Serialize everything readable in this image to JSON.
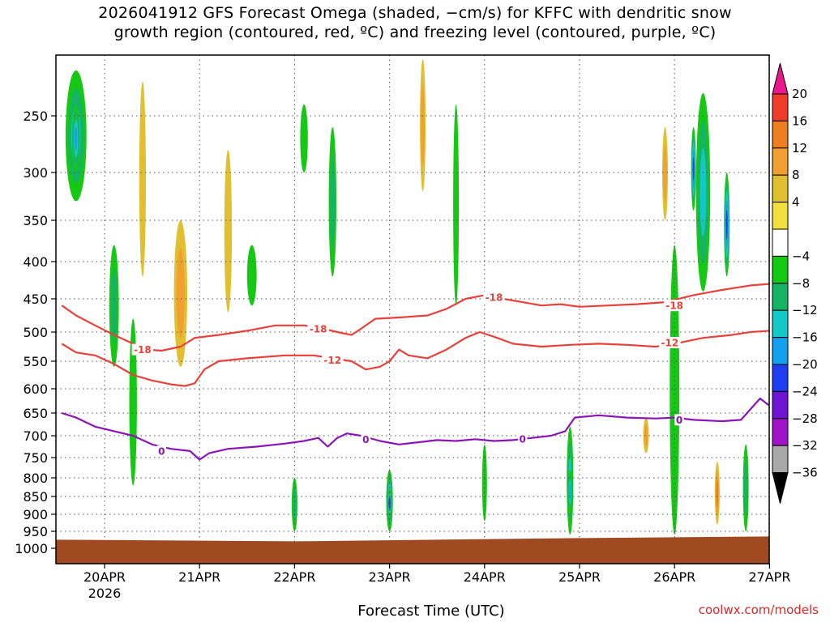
{
  "title_line1": "2026041912 GFS Forecast Omega (shaded, −cm/s) for KFFC with dendritic snow",
  "title_line2": "growth region (contoured, red, ºC) and freezing level (contoured, purple, ºC)",
  "credit": "coolwx.com/models",
  "colors": {
    "ground": "#a04a22",
    "dgz_contour": "#e8403a",
    "freezing_contour": "#8c14b4",
    "grid": "#555555"
  },
  "chart_data": {
    "type": "heatmap",
    "title": "2026041912 GFS Forecast Omega (shaded, −cm/s) for KFFC with dendritic snow growth region (contoured, red, ºC) and freezing level (contoured, purple, ºC)",
    "xlabel": "Forecast Time (UTC)",
    "ylabel": "",
    "x_ticks": [
      "20APR",
      "21APR",
      "22APR",
      "23APR",
      "24APR",
      "25APR",
      "26APR",
      "27APR"
    ],
    "x_sublabel": "2026",
    "x_range_days": [
      0.0,
      7.0
    ],
    "x_start_offset_days": -0.45,
    "y_ticks": [
      250,
      300,
      350,
      400,
      450,
      500,
      550,
      600,
      650,
      700,
      750,
      800,
      850,
      900,
      950,
      1000
    ],
    "y_range_hpa": [
      200,
      1020
    ],
    "colorbar": {
      "tick_labels": [
        "20",
        "16",
        "12",
        "8",
        "4",
        "−4",
        "−8",
        "−12",
        "−16",
        "−20",
        "−24",
        "−28",
        "−32",
        "−36"
      ],
      "bins": [
        {
          "range": ">20",
          "color": "#e8178c"
        },
        {
          "range": "16 to 20",
          "color": "#f03a2a"
        },
        {
          "range": "12 to 16",
          "color": "#ee7e20"
        },
        {
          "range": "8 to 12",
          "color": "#f0a030"
        },
        {
          "range": "4 to 8",
          "color": "#e0c030"
        },
        {
          "range": "-4 to 4",
          "color": "#f0e040"
        },
        {
          "range": "-4 to 4 (blank)",
          "color": "#ffffff"
        },
        {
          "range": "-8 to -4",
          "color": "#14c814"
        },
        {
          "range": "-12 to -8",
          "color": "#14b464"
        },
        {
          "range": "-16 to -12",
          "color": "#14c8c8"
        },
        {
          "range": "-20 to -16",
          "color": "#14a0f0"
        },
        {
          "range": "-24 to -20",
          "color": "#1e3cf0"
        },
        {
          "range": "-28 to -24",
          "color": "#6e14d2"
        },
        {
          "range": "-32 to -28",
          "color": "#a014c8"
        },
        {
          "range": "-36 to -32",
          "color": "#a8a8a8"
        },
        {
          "range": "<-36",
          "color": "#000000"
        }
      ]
    },
    "contours": {
      "dgz_minus18": {
        "label": "-18",
        "points_day_hpa": [
          [
            -0.45,
            460
          ],
          [
            -0.3,
            475
          ],
          [
            -0.1,
            490
          ],
          [
            0.1,
            505
          ],
          [
            0.3,
            520
          ],
          [
            0.45,
            530
          ],
          [
            0.6,
            532
          ],
          [
            0.8,
            525
          ],
          [
            0.95,
            510
          ],
          [
            1.2,
            505
          ],
          [
            1.5,
            498
          ],
          [
            1.8,
            490
          ],
          [
            2.1,
            490
          ],
          [
            2.3,
            495
          ],
          [
            2.45,
            500
          ],
          [
            2.6,
            505
          ],
          [
            2.7,
            495
          ],
          [
            2.85,
            480
          ],
          [
            3.1,
            478
          ],
          [
            3.4,
            475
          ],
          [
            3.6,
            465
          ],
          [
            3.8,
            450
          ],
          [
            4.0,
            445
          ],
          [
            4.2,
            450
          ],
          [
            4.4,
            455
          ],
          [
            4.6,
            460
          ],
          [
            4.8,
            458
          ],
          [
            5.0,
            462
          ],
          [
            5.3,
            460
          ],
          [
            5.6,
            458
          ],
          [
            5.9,
            455
          ],
          [
            6.2,
            445
          ],
          [
            6.5,
            438
          ],
          [
            6.8,
            432
          ],
          [
            7.0,
            430
          ]
        ]
      },
      "dgz_minus12": {
        "label": "-12",
        "points_day_hpa": [
          [
            -0.45,
            520
          ],
          [
            -0.3,
            535
          ],
          [
            -0.1,
            540
          ],
          [
            0.1,
            555
          ],
          [
            0.3,
            575
          ],
          [
            0.5,
            585
          ],
          [
            0.7,
            592
          ],
          [
            0.85,
            595
          ],
          [
            0.95,
            590
          ],
          [
            1.05,
            565
          ],
          [
            1.2,
            550
          ],
          [
            1.5,
            545
          ],
          [
            1.9,
            540
          ],
          [
            2.2,
            540
          ],
          [
            2.4,
            545
          ],
          [
            2.6,
            550
          ],
          [
            2.75,
            565
          ],
          [
            2.9,
            560
          ],
          [
            3.0,
            550
          ],
          [
            3.1,
            530
          ],
          [
            3.2,
            540
          ],
          [
            3.4,
            545
          ],
          [
            3.6,
            530
          ],
          [
            3.8,
            510
          ],
          [
            3.95,
            500
          ],
          [
            4.1,
            508
          ],
          [
            4.3,
            520
          ],
          [
            4.6,
            525
          ],
          [
            4.9,
            522
          ],
          [
            5.2,
            520
          ],
          [
            5.5,
            522
          ],
          [
            5.8,
            525
          ],
          [
            6.0,
            520
          ],
          [
            6.3,
            510
          ],
          [
            6.6,
            505
          ],
          [
            6.8,
            500
          ],
          [
            7.0,
            498
          ]
        ]
      },
      "freezing_level": {
        "label": "0",
        "points_day_hpa": [
          [
            -0.45,
            650
          ],
          [
            -0.3,
            660
          ],
          [
            -0.1,
            680
          ],
          [
            0.1,
            690
          ],
          [
            0.3,
            700
          ],
          [
            0.5,
            720
          ],
          [
            0.7,
            730
          ],
          [
            0.9,
            735
          ],
          [
            1.0,
            755
          ],
          [
            1.1,
            740
          ],
          [
            1.3,
            730
          ],
          [
            1.6,
            725
          ],
          [
            1.9,
            718
          ],
          [
            2.1,
            712
          ],
          [
            2.25,
            705
          ],
          [
            2.35,
            725
          ],
          [
            2.45,
            705
          ],
          [
            2.55,
            695
          ],
          [
            2.7,
            700
          ],
          [
            2.9,
            712
          ],
          [
            3.1,
            720
          ],
          [
            3.3,
            715
          ],
          [
            3.5,
            710
          ],
          [
            3.7,
            712
          ],
          [
            3.9,
            708
          ],
          [
            4.1,
            712
          ],
          [
            4.3,
            710
          ],
          [
            4.5,
            705
          ],
          [
            4.7,
            700
          ],
          [
            4.85,
            690
          ],
          [
            4.95,
            660
          ],
          [
            5.2,
            655
          ],
          [
            5.5,
            660
          ],
          [
            5.8,
            662
          ],
          [
            6.0,
            660
          ],
          [
            6.2,
            665
          ],
          [
            6.5,
            668
          ],
          [
            6.7,
            665
          ],
          [
            6.9,
            620
          ],
          [
            7.0,
            635
          ]
        ]
      }
    },
    "contour_labels": [
      {
        "text": "-18",
        "day": 0.4,
        "hpa": 530,
        "color": "dgz_contour"
      },
      {
        "text": "-18",
        "day": 2.25,
        "hpa": 495,
        "color": "dgz_contour"
      },
      {
        "text": "-18",
        "day": 4.1,
        "hpa": 448,
        "color": "dgz_contour"
      },
      {
        "text": "-18",
        "day": 6.0,
        "hpa": 460,
        "color": "dgz_contour"
      },
      {
        "text": "-12",
        "day": 2.4,
        "hpa": 548,
        "color": "dgz_contour"
      },
      {
        "text": "-12",
        "day": 5.95,
        "hpa": 518,
        "color": "dgz_contour"
      },
      {
        "text": "0",
        "day": 0.6,
        "hpa": 735,
        "color": "freezing_contour"
      },
      {
        "text": "0",
        "day": 2.75,
        "hpa": 708,
        "color": "freezing_contour"
      },
      {
        "text": "0",
        "day": 4.4,
        "hpa": 707,
        "color": "freezing_contour"
      },
      {
        "text": "0",
        "day": 6.05,
        "hpa": 665,
        "color": "freezing_contour"
      }
    ],
    "omega_features": [
      {
        "day": -0.3,
        "p0": 210,
        "p1": 330,
        "w": 0.22,
        "val": -16
      },
      {
        "day": -0.3,
        "p0": 240,
        "p1": 300,
        "w": 0.08,
        "val": -20
      },
      {
        "day": 0.1,
        "p0": 380,
        "p1": 560,
        "w": 0.1,
        "val": -12
      },
      {
        "day": 0.3,
        "p0": 480,
        "p1": 820,
        "w": 0.08,
        "val": -8
      },
      {
        "day": 0.4,
        "p0": 220,
        "p1": 420,
        "w": 0.07,
        "val": 6
      },
      {
        "day": 0.8,
        "p0": 350,
        "p1": 560,
        "w": 0.14,
        "val": 10
      },
      {
        "day": 1.3,
        "p0": 280,
        "p1": 470,
        "w": 0.08,
        "val": 6
      },
      {
        "day": 1.55,
        "p0": 380,
        "p1": 460,
        "w": 0.1,
        "val": -6
      },
      {
        "day": 2.1,
        "p0": 240,
        "p1": 300,
        "w": 0.08,
        "val": -6
      },
      {
        "day": 2.0,
        "p0": 800,
        "p1": 950,
        "w": 0.06,
        "val": -12
      },
      {
        "day": 2.4,
        "p0": 260,
        "p1": 420,
        "w": 0.08,
        "val": -10
      },
      {
        "day": 3.0,
        "p0": 780,
        "p1": 950,
        "w": 0.07,
        "val": -20
      },
      {
        "day": 3.0,
        "p0": 830,
        "p1": 910,
        "w": 0.025,
        "val": -26
      },
      {
        "day": 3.35,
        "p0": 200,
        "p1": 320,
        "w": 0.06,
        "val": 10
      },
      {
        "day": 3.7,
        "p0": 240,
        "p1": 460,
        "w": 0.06,
        "val": -6
      },
      {
        "day": 4.0,
        "p0": 720,
        "p1": 920,
        "w": 0.05,
        "val": -8
      },
      {
        "day": 4.9,
        "p0": 680,
        "p1": 960,
        "w": 0.07,
        "val": -14
      },
      {
        "day": 4.9,
        "p0": 780,
        "p1": 900,
        "w": 0.03,
        "val": -20
      },
      {
        "day": 5.7,
        "p0": 660,
        "p1": 740,
        "w": 0.06,
        "val": 10
      },
      {
        "day": 5.9,
        "p0": 260,
        "p1": 350,
        "w": 0.06,
        "val": 12
      },
      {
        "day": 6.0,
        "p0": 380,
        "p1": 960,
        "w": 0.1,
        "val": -8
      },
      {
        "day": 6.3,
        "p0": 230,
        "p1": 440,
        "w": 0.15,
        "val": -14
      },
      {
        "day": 6.2,
        "p0": 260,
        "p1": 340,
        "w": 0.05,
        "val": -22
      },
      {
        "day": 6.55,
        "p0": 300,
        "p1": 420,
        "w": 0.06,
        "val": -22
      },
      {
        "day": 6.45,
        "p0": 760,
        "p1": 930,
        "w": 0.05,
        "val": 14
      },
      {
        "day": 6.75,
        "p0": 720,
        "p1": 950,
        "w": 0.06,
        "val": -12
      }
    ],
    "ground_level_hpa": 970
  }
}
